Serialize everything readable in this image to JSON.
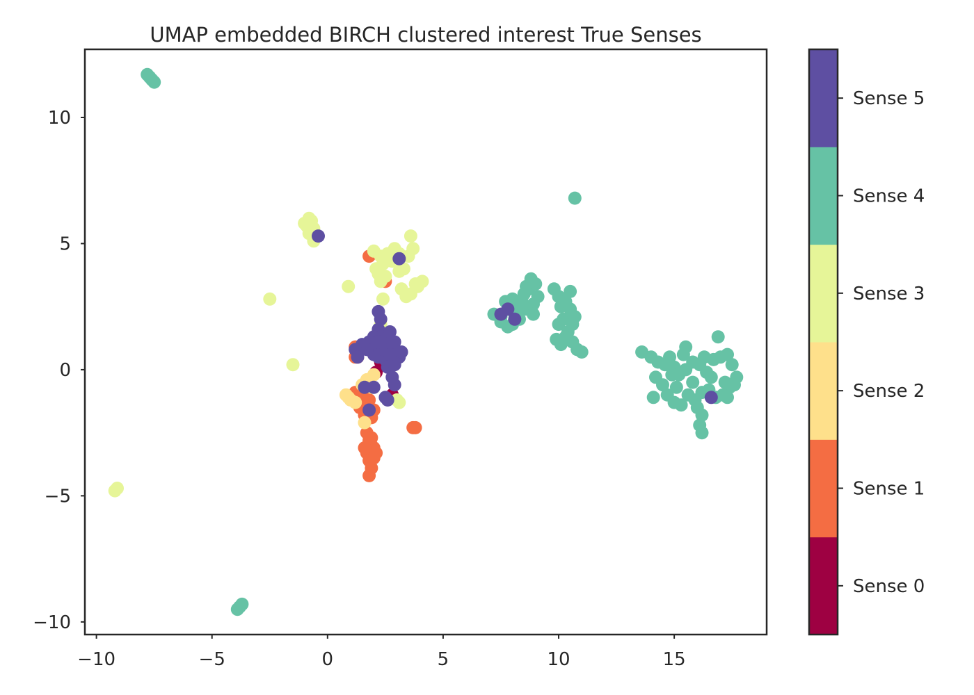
{
  "chart_data": {
    "type": "scatter",
    "title": "UMAP embedded BIRCH clustered interest True Senses",
    "xlabel": "",
    "ylabel": "",
    "xlim": [
      -10.5,
      19.0
    ],
    "ylim": [
      -10.5,
      12.7
    ],
    "xticks": [
      -10,
      -5,
      0,
      5,
      10,
      15
    ],
    "xtick_labels": [
      "−10",
      "−5",
      "0",
      "5",
      "10",
      "15"
    ],
    "yticks": [
      -10,
      -5,
      0,
      5,
      10
    ],
    "ytick_labels": [
      "−10",
      "−5",
      "0",
      "5",
      "10"
    ],
    "grid": false,
    "colorbar": {
      "categories": [
        "Sense 0",
        "Sense 1",
        "Sense 2",
        "Sense 3",
        "Sense 4",
        "Sense 5"
      ],
      "colors": [
        "#9e0142",
        "#f46d43",
        "#fee08b",
        "#e6f598",
        "#66c2a5",
        "#5e4fa2"
      ]
    },
    "series": [
      {
        "color": "#9e0142",
        "points": [
          [
            2.3,
            0.3
          ],
          [
            2.8,
            -1.0
          ],
          [
            2.6,
            0.5
          ],
          [
            2.1,
            -0.1
          ],
          [
            2.5,
            0.2
          ]
        ]
      },
      {
        "color": "#f46d43",
        "points": [
          [
            1.8,
            4.5
          ],
          [
            2.5,
            3.5
          ],
          [
            1.2,
            0.9
          ],
          [
            1.3,
            0.5
          ],
          [
            1.2,
            0.5
          ],
          [
            1.6,
            -0.8
          ],
          [
            1.4,
            -1.0
          ],
          [
            1.3,
            -1.2
          ],
          [
            1.5,
            -1.3
          ],
          [
            1.7,
            -1.5
          ],
          [
            1.6,
            -1.8
          ],
          [
            2.0,
            -1.6
          ],
          [
            1.9,
            -1.9
          ],
          [
            1.6,
            -1.0
          ],
          [
            1.8,
            -0.6
          ],
          [
            1.7,
            -2.5
          ],
          [
            1.8,
            -2.8
          ],
          [
            1.9,
            -3.0
          ],
          [
            1.7,
            -3.3
          ],
          [
            2.0,
            -3.1
          ],
          [
            1.8,
            -3.6
          ],
          [
            1.9,
            -3.9
          ],
          [
            1.8,
            -4.2
          ],
          [
            2.1,
            -3.3
          ],
          [
            1.6,
            -3.1
          ],
          [
            1.9,
            -2.7
          ],
          [
            2.0,
            -3.5
          ],
          [
            3.8,
            -2.3
          ],
          [
            3.7,
            -2.3
          ],
          [
            1.2,
            -0.9
          ],
          [
            1.4,
            -1.5
          ],
          [
            1.8,
            -1.2
          ]
        ]
      },
      {
        "color": "#fee08b",
        "points": [
          [
            1.7,
            -0.4
          ],
          [
            1.9,
            -0.7
          ],
          [
            0.8,
            -1.0
          ],
          [
            0.9,
            -1.1
          ],
          [
            1.0,
            -1.2
          ],
          [
            1.2,
            -1.3
          ],
          [
            1.6,
            -2.1
          ],
          [
            1.5,
            -0.6
          ],
          [
            2.2,
            0.9
          ],
          [
            2.0,
            -0.2
          ]
        ]
      },
      {
        "color": "#e6f598",
        "points": [
          [
            -0.7,
            5.9
          ],
          [
            -0.9,
            5.7
          ],
          [
            -0.6,
            5.6
          ],
          [
            -0.8,
            5.4
          ],
          [
            -0.5,
            5.3
          ],
          [
            -0.6,
            5.1
          ],
          [
            -0.8,
            6.0
          ],
          [
            -1.0,
            5.8
          ],
          [
            2.0,
            4.7
          ],
          [
            2.3,
            4.5
          ],
          [
            2.4,
            4.2
          ],
          [
            2.1,
            4.0
          ],
          [
            2.6,
            4.6
          ],
          [
            2.8,
            4.3
          ],
          [
            3.1,
            4.6
          ],
          [
            3.5,
            4.5
          ],
          [
            3.3,
            4.0
          ],
          [
            3.6,
            5.3
          ],
          [
            2.2,
            3.8
          ],
          [
            2.3,
            3.5
          ],
          [
            2.5,
            3.7
          ],
          [
            3.1,
            3.9
          ],
          [
            2.9,
            4.8
          ],
          [
            3.7,
            4.8
          ],
          [
            3.2,
            3.2
          ],
          [
            3.4,
            2.9
          ],
          [
            3.6,
            3.0
          ],
          [
            3.9,
            3.3
          ],
          [
            4.1,
            3.5
          ],
          [
            3.8,
            3.4
          ],
          [
            0.9,
            3.3
          ],
          [
            2.4,
            2.8
          ],
          [
            -2.5,
            2.8
          ],
          [
            2.3,
            1.8
          ],
          [
            -1.5,
            0.2
          ],
          [
            2.9,
            0.6
          ],
          [
            3.0,
            -1.2
          ],
          [
            3.1,
            -1.3
          ],
          [
            -9.1,
            -4.7
          ],
          [
            -9.2,
            -4.8
          ]
        ]
      },
      {
        "color": "#66c2a5",
        "points": [
          [
            -7.8,
            11.7
          ],
          [
            -7.6,
            11.5
          ],
          [
            -7.5,
            11.4
          ],
          [
            -7.7,
            11.6
          ],
          [
            -3.7,
            -9.3
          ],
          [
            -3.8,
            -9.4
          ],
          [
            -3.9,
            -9.5
          ],
          [
            10.7,
            6.8
          ],
          [
            7.2,
            2.2
          ],
          [
            7.5,
            2.1
          ],
          [
            7.7,
            2.7
          ],
          [
            8.0,
            2.8
          ],
          [
            8.2,
            2.5
          ],
          [
            8.5,
            3.0
          ],
          [
            8.6,
            3.3
          ],
          [
            8.8,
            3.6
          ],
          [
            8.7,
            3.2
          ],
          [
            9.0,
            3.4
          ],
          [
            9.1,
            2.9
          ],
          [
            8.9,
            2.6
          ],
          [
            8.6,
            2.4
          ],
          [
            8.3,
            2.0
          ],
          [
            8.0,
            1.8
          ],
          [
            8.1,
            2.2
          ],
          [
            7.8,
            1.7
          ],
          [
            8.4,
            2.7
          ],
          [
            8.9,
            2.2
          ],
          [
            7.5,
            1.9
          ],
          [
            9.8,
            3.2
          ],
          [
            10.0,
            2.9
          ],
          [
            10.1,
            2.5
          ],
          [
            10.3,
            2.7
          ],
          [
            10.5,
            2.4
          ],
          [
            10.2,
            2.0
          ],
          [
            10.0,
            1.8
          ],
          [
            10.4,
            1.5
          ],
          [
            10.6,
            1.8
          ],
          [
            10.7,
            2.1
          ],
          [
            10.5,
            3.1
          ],
          [
            9.9,
            1.2
          ],
          [
            10.1,
            1.0
          ],
          [
            10.3,
            1.3
          ],
          [
            10.6,
            1.1
          ],
          [
            10.8,
            0.8
          ],
          [
            11.0,
            0.7
          ],
          [
            13.6,
            0.7
          ],
          [
            14.0,
            0.5
          ],
          [
            14.3,
            0.3
          ],
          [
            14.6,
            0.2
          ],
          [
            14.8,
            0.5
          ],
          [
            15.0,
            0.1
          ],
          [
            15.2,
            -0.2
          ],
          [
            15.5,
            0.0
          ],
          [
            15.8,
            0.3
          ],
          [
            16.1,
            0.2
          ],
          [
            16.4,
            -0.1
          ],
          [
            16.7,
            0.4
          ],
          [
            17.0,
            0.5
          ],
          [
            17.3,
            0.6
          ],
          [
            17.5,
            0.2
          ],
          [
            17.7,
            -0.3
          ],
          [
            17.4,
            -0.7
          ],
          [
            17.1,
            -1.0
          ],
          [
            16.8,
            -1.1
          ],
          [
            16.5,
            -0.8
          ],
          [
            16.2,
            -0.9
          ],
          [
            15.9,
            -1.2
          ],
          [
            15.6,
            -1.0
          ],
          [
            15.3,
            -1.4
          ],
          [
            15.0,
            -1.3
          ],
          [
            14.7,
            -1.0
          ],
          [
            14.5,
            -0.6
          ],
          [
            14.2,
            -0.3
          ],
          [
            14.1,
            -1.1
          ],
          [
            15.5,
            0.9
          ],
          [
            15.4,
            0.6
          ],
          [
            16.0,
            -1.5
          ],
          [
            16.2,
            -1.8
          ],
          [
            16.1,
            -2.2
          ],
          [
            16.2,
            -2.5
          ],
          [
            16.9,
            1.3
          ],
          [
            17.2,
            -0.5
          ],
          [
            16.3,
            0.5
          ],
          [
            15.8,
            -0.5
          ],
          [
            15.1,
            -0.7
          ],
          [
            14.9,
            -0.2
          ],
          [
            16.6,
            -0.3
          ],
          [
            17.6,
            -0.6
          ],
          [
            17.3,
            -1.1
          ]
        ]
      },
      {
        "color": "#5e4fa2",
        "points": [
          [
            -0.4,
            5.3
          ],
          [
            3.1,
            4.4
          ],
          [
            2.2,
            2.3
          ],
          [
            2.3,
            2.0
          ],
          [
            2.2,
            1.6
          ],
          [
            2.0,
            1.3
          ],
          [
            1.8,
            1.1
          ],
          [
            2.1,
            0.8
          ],
          [
            2.4,
            1.0
          ],
          [
            2.6,
            1.2
          ],
          [
            2.8,
            0.9
          ],
          [
            3.0,
            0.7
          ],
          [
            3.1,
            0.5
          ],
          [
            2.7,
            0.3
          ],
          [
            2.5,
            0.4
          ],
          [
            2.2,
            0.5
          ],
          [
            2.0,
            0.6
          ],
          [
            1.7,
            0.8
          ],
          [
            1.5,
            1.0
          ],
          [
            2.3,
            1.3
          ],
          [
            2.7,
            1.5
          ],
          [
            2.9,
            1.1
          ],
          [
            3.2,
            0.7
          ],
          [
            2.6,
            0.1
          ],
          [
            2.8,
            -0.3
          ],
          [
            2.9,
            -0.6
          ],
          [
            2.5,
            -1.1
          ],
          [
            2.6,
            -1.2
          ],
          [
            1.2,
            0.8
          ],
          [
            1.3,
            0.5
          ],
          [
            1.6,
            -0.7
          ],
          [
            2.0,
            -0.7
          ],
          [
            1.8,
            -1.6
          ],
          [
            2.4,
            0.8
          ],
          [
            2.2,
            1.1
          ],
          [
            7.5,
            2.2
          ],
          [
            7.8,
            2.4
          ],
          [
            8.1,
            2.0
          ],
          [
            16.6,
            -1.1
          ],
          [
            2.9,
            0.2
          ],
          [
            2.7,
            0.6
          ]
        ]
      }
    ]
  }
}
